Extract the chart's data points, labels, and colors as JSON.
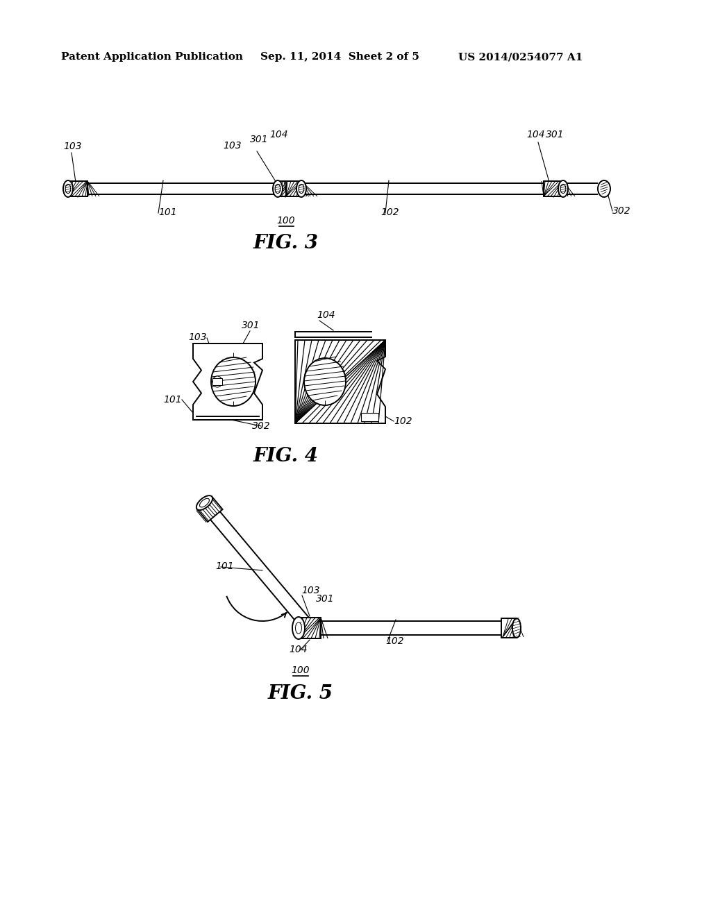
{
  "bg_color": "#ffffff",
  "header_left": "Patent Application Publication",
  "header_mid": "Sep. 11, 2014  Sheet 2 of 5",
  "header_right": "US 2014/0254077 A1",
  "fig3_label": "FIG. 3",
  "fig4_label": "FIG. 4",
  "fig5_label": "FIG. 5",
  "ref_100": "100",
  "ref_101": "101",
  "ref_102": "102",
  "ref_103": "103",
  "ref_104": "104",
  "ref_301": "301",
  "ref_302": "302",
  "lfs": 10,
  "header_fontsize": 11,
  "fig_label_fontsize": 20
}
